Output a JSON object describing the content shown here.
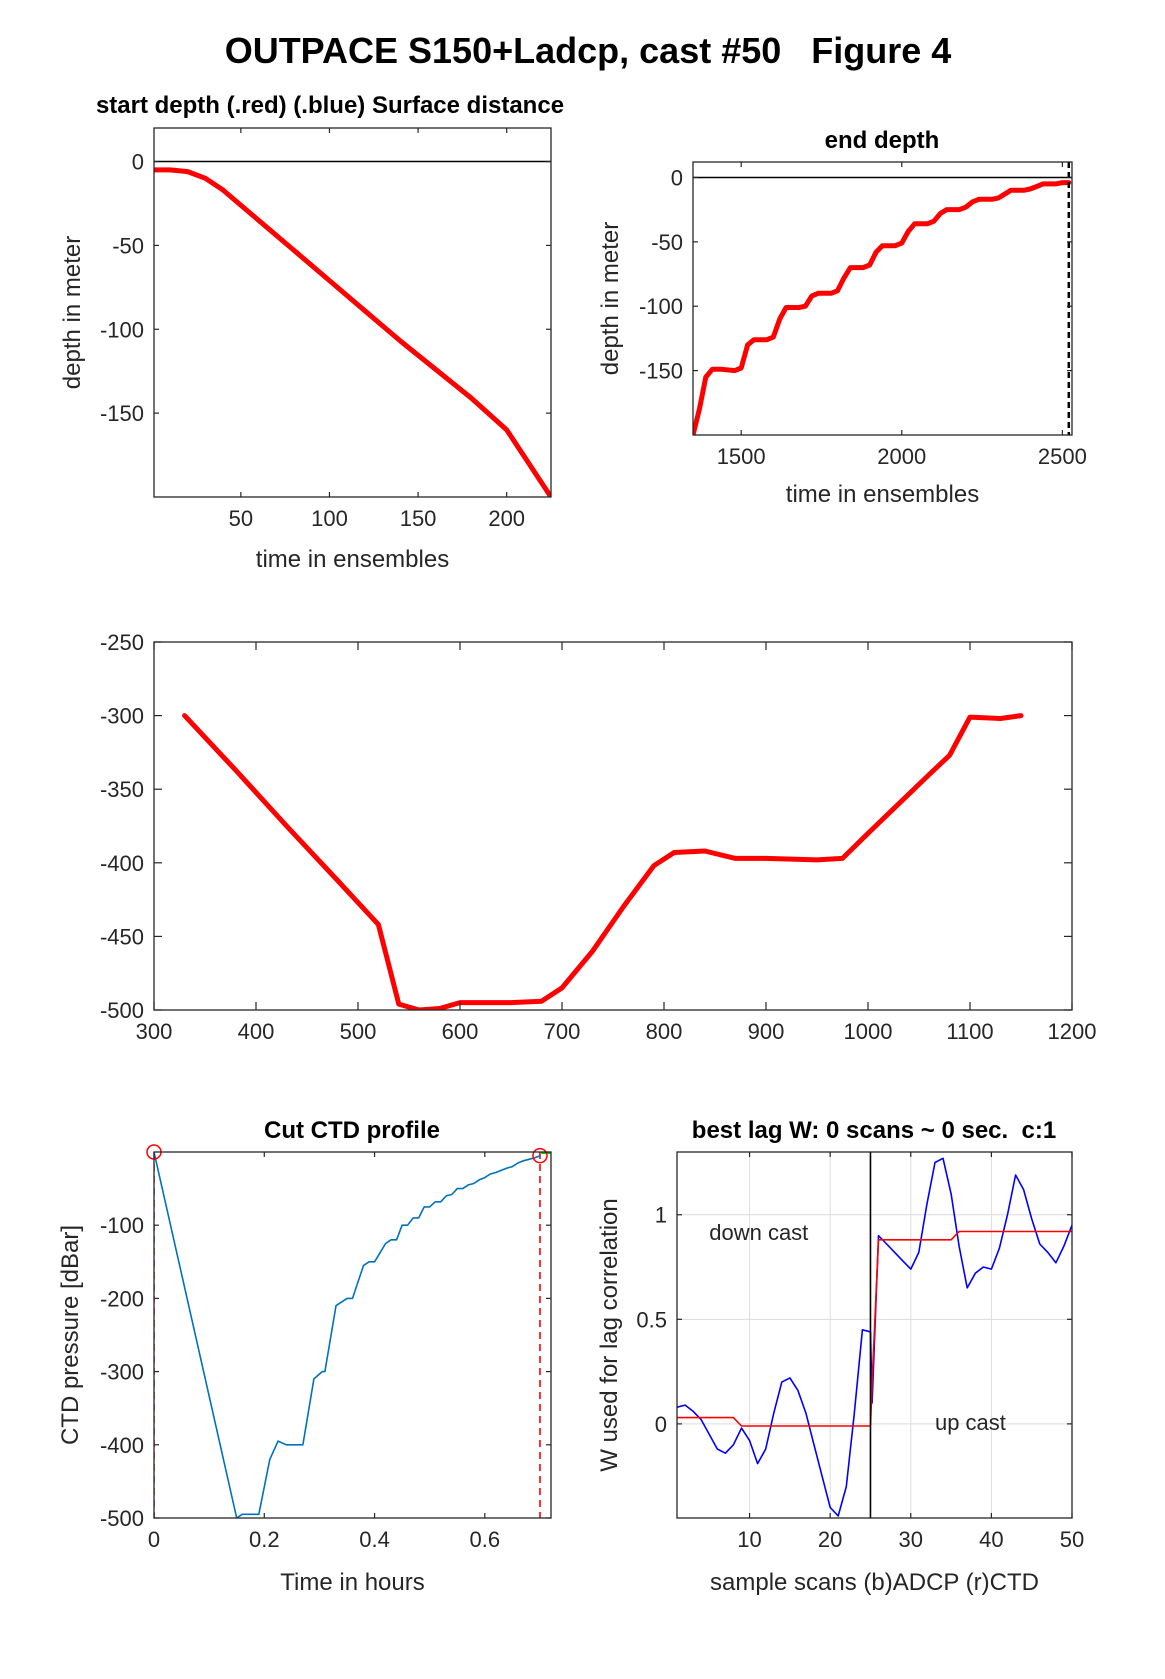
{
  "figure_title": "OUTPACE S150+Ladcp, cast #50   Figure 4",
  "chart_data": [
    {
      "id": "start_depth",
      "type": "line",
      "title": "start depth (.red) (.blue) Surface distance",
      "xlabel": "time in ensembles",
      "ylabel": "depth in meter",
      "xlim": [
        1,
        225
      ],
      "ylim": [
        -200,
        20
      ],
      "xticks": [
        50,
        100,
        150,
        200
      ],
      "xtick_labels": [
        "50",
        "100",
        "150",
        "200"
      ],
      "yticks": [
        0,
        -50,
        -100,
        -150
      ],
      "ytick_labels": [
        "0",
        "-50",
        "-100",
        "-150"
      ],
      "grid": false,
      "series": [
        {
          "color": "#ff0000",
          "x": [
            1,
            10,
            20,
            30,
            40,
            60,
            80,
            100,
            120,
            140,
            160,
            180,
            200,
            225
          ],
          "y": [
            -5,
            -5,
            -6,
            -10,
            -17,
            -35,
            -53,
            -71,
            -89,
            -107,
            -124,
            -141,
            -160,
            -200
          ]
        },
        {
          "color": "#000000",
          "x": [
            1,
            225
          ],
          "y": [
            0,
            0
          ]
        }
      ]
    },
    {
      "id": "end_depth",
      "type": "line",
      "title": "end depth",
      "xlabel": "time in ensembles",
      "ylabel": "depth in meter",
      "xlim": [
        1350,
        2530
      ],
      "ylim": [
        -200,
        12
      ],
      "xticks": [
        1500,
        2000,
        2500
      ],
      "xtick_labels": [
        "1500",
        "2000",
        "2500"
      ],
      "yticks": [
        0,
        -50,
        -100,
        -150
      ],
      "ytick_labels": [
        "0",
        "-50",
        "-100",
        "-150"
      ],
      "grid": false,
      "vline_x": 2520,
      "series": [
        {
          "color": "#ff0000",
          "x": [
            1350,
            1370,
            1390,
            1410,
            1440,
            1480,
            1500,
            1520,
            1540,
            1580,
            1600,
            1620,
            1640,
            1680,
            1700,
            1720,
            1740,
            1780,
            1800,
            1820,
            1840,
            1880,
            1900,
            1920,
            1940,
            1980,
            2000,
            2020,
            2040,
            2080,
            2100,
            2120,
            2140,
            2180,
            2200,
            2220,
            2240,
            2280,
            2300,
            2320,
            2340,
            2380,
            2400,
            2420,
            2440,
            2480,
            2500,
            2520
          ],
          "y": [
            -200,
            -180,
            -155,
            -149,
            -149,
            -150,
            -148,
            -130,
            -126,
            -126,
            -124,
            -110,
            -101,
            -101,
            -100,
            -92,
            -90,
            -90,
            -88,
            -78,
            -70,
            -70,
            -68,
            -58,
            -53,
            -53,
            -51,
            -42,
            -36,
            -36,
            -34,
            -28,
            -25,
            -25,
            -23,
            -19,
            -17,
            -17,
            -16,
            -13,
            -10,
            -10,
            -9,
            -7,
            -5,
            -5,
            -4,
            -4
          ]
        },
        {
          "color": "#000000",
          "x": [
            1350,
            2530
          ],
          "y": [
            0,
            0
          ]
        }
      ]
    },
    {
      "id": "middle",
      "type": "line",
      "title": "",
      "xlabel": "",
      "ylabel": "",
      "xlim": [
        300,
        1200
      ],
      "ylim": [
        -500,
        -250
      ],
      "xticks": [
        300,
        400,
        500,
        600,
        700,
        800,
        900,
        1000,
        1100,
        1200
      ],
      "xtick_labels": [
        "300",
        "400",
        "500",
        "600",
        "700",
        "800",
        "900",
        "1000",
        "1100",
        "1200"
      ],
      "yticks": [
        -250,
        -300,
        -350,
        -400,
        -450,
        -500
      ],
      "ytick_labels": [
        "-250",
        "-300",
        "-350",
        "-400",
        "-450",
        "-500"
      ],
      "grid": false,
      "series": [
        {
          "color": "#ff0000",
          "x": [
            330,
            380,
            430,
            480,
            520,
            540,
            560,
            580,
            600,
            650,
            680,
            700,
            730,
            760,
            790,
            810,
            840,
            870,
            900,
            950,
            975,
            1000,
            1030,
            1060,
            1080,
            1100,
            1130,
            1150
          ],
          "y": [
            -300,
            -337,
            -375,
            -412,
            -442,
            -496,
            -500,
            -499,
            -495,
            -495,
            -494,
            -485,
            -460,
            -430,
            -402,
            -393,
            -392,
            -397,
            -397,
            -398,
            -397,
            -380,
            -360,
            -340,
            -327,
            -301,
            -302,
            -300
          ]
        }
      ]
    },
    {
      "id": "cut_ctd",
      "type": "line",
      "title": "Cut CTD profile",
      "xlabel": "Time in hours",
      "ylabel": "CTD pressure [dBar]",
      "xlim": [
        0,
        0.72
      ],
      "ylim": [
        -500,
        0
      ],
      "xticks": [
        0,
        0.2,
        0.4,
        0.6
      ],
      "xtick_labels": [
        "0",
        "0.2",
        "0.4",
        "0.6"
      ],
      "yticks": [
        -100,
        -200,
        -300,
        -400,
        -500
      ],
      "ytick_labels": [
        "-100",
        "-200",
        "-300",
        "-400",
        "-500"
      ],
      "grid": false,
      "cut_lines_x": [
        0,
        0.7
      ],
      "series": [
        {
          "color": "#0072bd",
          "x": [
            0,
            0.15,
            0.16,
            0.19,
            0.21,
            0.225,
            0.24,
            0.27,
            0.29,
            0.305,
            0.31,
            0.33,
            0.35,
            0.36,
            0.38,
            0.39,
            0.4,
            0.42,
            0.43,
            0.44,
            0.45,
            0.46,
            0.47,
            0.48,
            0.49,
            0.5,
            0.51,
            0.52,
            0.53,
            0.54,
            0.55,
            0.56,
            0.57,
            0.58,
            0.59,
            0.6,
            0.61,
            0.62,
            0.63,
            0.64,
            0.65,
            0.66,
            0.67,
            0.68,
            0.69,
            0.7
          ],
          "y": [
            0,
            -500,
            -495,
            -495,
            -420,
            -395,
            -400,
            -400,
            -310,
            -300,
            -300,
            -210,
            -200,
            -200,
            -155,
            -150,
            -150,
            -125,
            -120,
            -120,
            -100,
            -100,
            -90,
            -90,
            -75,
            -75,
            -68,
            -68,
            -60,
            -58,
            -50,
            -50,
            -45,
            -43,
            -38,
            -35,
            -30,
            -28,
            -25,
            -22,
            -20,
            -15,
            -12,
            -10,
            -8,
            -5
          ]
        },
        {
          "color": "#00cc00",
          "x": [
            0.705,
            0.72
          ],
          "y": [
            0,
            0
          ]
        }
      ]
    },
    {
      "id": "best_lag",
      "type": "line",
      "title": "best lag W: 0 scans ~ 0 sec.  c:1",
      "xlabel": "sample scans (b)ADCP (r)CTD",
      "ylabel": "W used for lag correlation",
      "xlim": [
        1,
        50
      ],
      "ylim": [
        -0.45,
        1.3
      ],
      "xticks": [
        10,
        20,
        30,
        40,
        50
      ],
      "xtick_labels": [
        "10",
        "20",
        "30",
        "40",
        "50"
      ],
      "yticks": [
        0,
        0.5,
        1
      ],
      "ytick_labels": [
        "0",
        "0.5",
        "1"
      ],
      "grid": true,
      "vline_x": 25,
      "annotations": [
        {
          "text": "down cast",
          "x": 5,
          "y": 0.88
        },
        {
          "text": "up cast",
          "x": 33,
          "y": -0.03
        }
      ],
      "series": [
        {
          "color": "#0000ff",
          "x": [
            1,
            2,
            3,
            4,
            5,
            6,
            7,
            8,
            9,
            10,
            11,
            12,
            13,
            14,
            15,
            16,
            17,
            18,
            19,
            20,
            21,
            22,
            23,
            24,
            25,
            25.2,
            26,
            27,
            28,
            29,
            30,
            31,
            32,
            33,
            34,
            35,
            36,
            37,
            38,
            39,
            40,
            41,
            42,
            43,
            44,
            45,
            46,
            47,
            48,
            49,
            50
          ],
          "y": [
            0.08,
            0.09,
            0.06,
            0.02,
            -0.05,
            -0.12,
            -0.14,
            -0.1,
            -0.02,
            -0.08,
            -0.19,
            -0.12,
            0.05,
            0.2,
            0.22,
            0.16,
            0.05,
            -0.1,
            -0.25,
            -0.4,
            -0.44,
            -0.3,
            0.05,
            0.45,
            0.44,
            0.1,
            0.9,
            0.86,
            0.82,
            0.78,
            0.74,
            0.82,
            1.05,
            1.25,
            1.27,
            1.1,
            0.85,
            0.65,
            0.72,
            0.75,
            0.74,
            0.84,
            1.0,
            1.19,
            1.12,
            0.98,
            0.86,
            0.82,
            0.77,
            0.85,
            0.95
          ]
        },
        {
          "color": "#ff0000",
          "x": [
            1,
            8,
            9,
            25,
            25.2,
            26,
            35,
            36,
            50
          ],
          "y": [
            0.03,
            0.03,
            -0.01,
            -0.01,
            0.2,
            0.88,
            0.88,
            0.92,
            0.92
          ]
        }
      ]
    }
  ]
}
